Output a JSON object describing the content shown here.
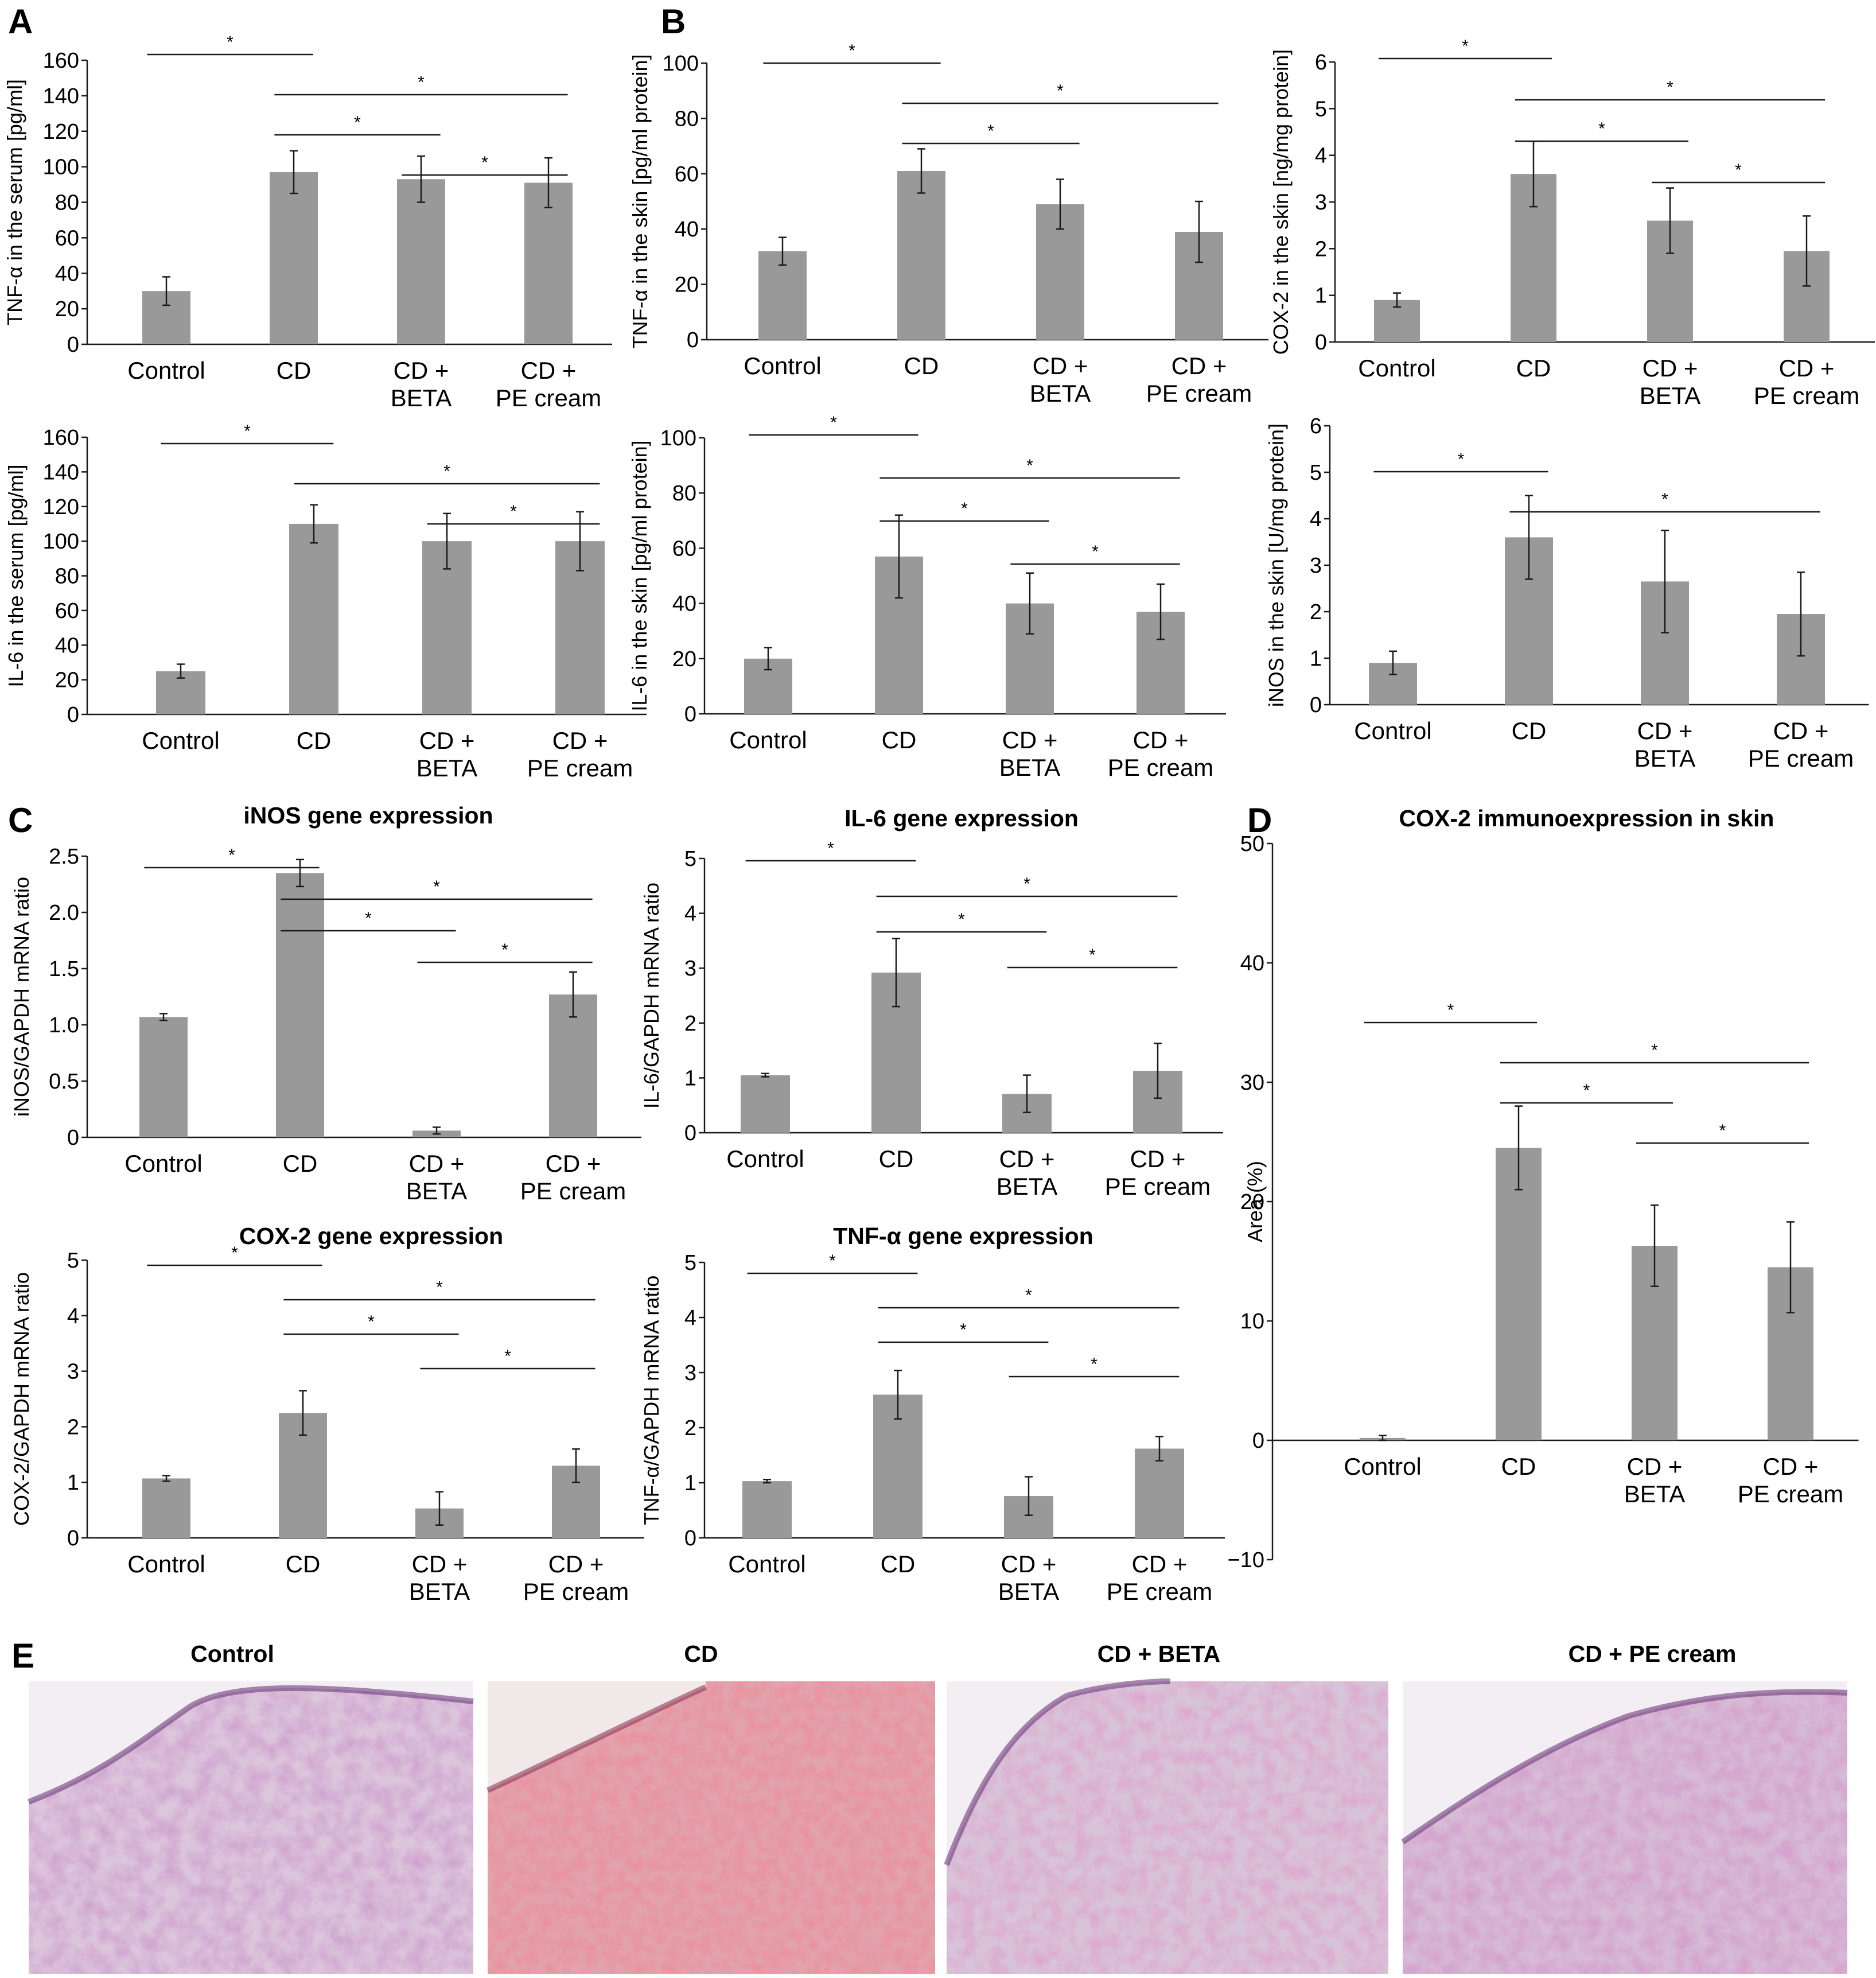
{
  "panel_labels": [
    "A",
    "B",
    "C",
    "D",
    "E"
  ],
  "colors": {
    "bar": "#999999",
    "line": "#1a1a1a",
    "background": "#ffffff"
  },
  "significance_marker": "*",
  "chart_data": [
    {
      "type": "bar",
      "panel": "A",
      "title": "",
      "ylabel": "TNF-α in the serum [pg/ml]",
      "categories": [
        [
          "Control"
        ],
        [
          "CD"
        ],
        [
          "CD +",
          "BETA"
        ],
        [
          "CD +",
          "PE cream"
        ]
      ],
      "values": [
        30,
        97,
        93,
        91
      ],
      "errors": [
        8,
        12,
        13,
        14
      ],
      "ylim": [
        0,
        160
      ],
      "yticks": [
        "0",
        "20",
        "40",
        "60",
        "80",
        "100",
        "120",
        "140",
        "160"
      ],
      "significance": [
        [
          0,
          1
        ],
        [
          1,
          3
        ],
        [
          1,
          2
        ],
        [
          2,
          3
        ]
      ],
      "legend": "none",
      "grid": false
    },
    {
      "type": "bar",
      "panel": "B",
      "title": "",
      "ylabel": "TNF-α in the skin [pg/ml protein]",
      "categories": [
        [
          "Control"
        ],
        [
          "CD"
        ],
        [
          "CD +",
          "BETA"
        ],
        [
          "CD +",
          "PE cream"
        ]
      ],
      "values": [
        32,
        61,
        49,
        39
      ],
      "errors": [
        5,
        8,
        9,
        11
      ],
      "ylim": [
        0,
        100
      ],
      "yticks": [
        "0",
        "20",
        "40",
        "60",
        "80",
        "100"
      ],
      "significance": [
        [
          0,
          1
        ],
        [
          1,
          3
        ],
        [
          1,
          2
        ]
      ],
      "legend": "none",
      "grid": false
    },
    {
      "type": "bar",
      "panel": "",
      "title": "",
      "ylabel": "COX-2 in the skin [ng/mg protein]",
      "categories": [
        [
          "Control"
        ],
        [
          "CD"
        ],
        [
          "CD +",
          "BETA"
        ],
        [
          "CD +",
          "PE cream"
        ]
      ],
      "values": [
        0.9,
        3.6,
        2.6,
        1.95
      ],
      "errors": [
        0.15,
        0.7,
        0.7,
        0.75
      ],
      "ylim": [
        0,
        6
      ],
      "yticks": [
        "0",
        "1",
        "2",
        "3",
        "4",
        "5",
        "6"
      ],
      "significance": [
        [
          0,
          1
        ],
        [
          1,
          3
        ],
        [
          1,
          2
        ],
        [
          2,
          3
        ]
      ],
      "legend": "none",
      "grid": false
    },
    {
      "type": "bar",
      "panel": "",
      "title": "",
      "ylabel": "IL-6 in the serum [pg/ml]",
      "categories": [
        [
          "Control"
        ],
        [
          "CD"
        ],
        [
          "CD +",
          "BETA"
        ],
        [
          "CD +",
          "PE cream"
        ]
      ],
      "values": [
        25,
        110,
        100,
        100
      ],
      "errors": [
        4,
        11,
        16,
        17
      ],
      "ylim": [
        0,
        160
      ],
      "yticks": [
        "0",
        "20",
        "40",
        "60",
        "80",
        "100",
        "120",
        "140",
        "160"
      ],
      "significance": [
        [
          0,
          1
        ],
        [
          1,
          3
        ],
        [
          2,
          3
        ]
      ],
      "legend": "none",
      "grid": false
    },
    {
      "type": "bar",
      "panel": "",
      "title": "",
      "ylabel": "IL-6 in the skin [pg/ml protein]",
      "categories": [
        [
          "Control"
        ],
        [
          "CD"
        ],
        [
          "CD +",
          "BETA"
        ],
        [
          "CD +",
          "PE cream"
        ]
      ],
      "values": [
        20,
        57,
        40,
        37
      ],
      "errors": [
        4,
        15,
        11,
        10
      ],
      "ylim": [
        0,
        100
      ],
      "yticks": [
        "0",
        "20",
        "40",
        "60",
        "80",
        "100"
      ],
      "significance": [
        [
          0,
          1
        ],
        [
          1,
          3
        ],
        [
          1,
          2
        ],
        [
          2,
          3
        ]
      ],
      "legend": "none",
      "grid": false
    },
    {
      "type": "bar",
      "panel": "",
      "title": "",
      "ylabel": "iNOS in the skin [U/mg protein]",
      "categories": [
        [
          "Control"
        ],
        [
          "CD"
        ],
        [
          "CD +",
          "BETA"
        ],
        [
          "CD +",
          "PE cream"
        ]
      ],
      "values": [
        0.9,
        3.6,
        2.65,
        1.95
      ],
      "errors": [
        0.25,
        0.9,
        1.1,
        0.9
      ],
      "ylim": [
        0,
        6
      ],
      "yticks": [
        "0",
        "1",
        "2",
        "3",
        "4",
        "5",
        "6"
      ],
      "significance": [
        [
          0,
          1
        ],
        [
          1,
          3
        ]
      ],
      "legend": "none",
      "grid": false
    },
    {
      "type": "bar",
      "panel": "C",
      "title": "iNOS gene expression",
      "ylabel": "iNOS/GAPDH mRNA ratio",
      "categories": [
        [
          "Control"
        ],
        [
          "CD"
        ],
        [
          "CD +",
          "BETA"
        ],
        [
          "CD +",
          "PE cream"
        ]
      ],
      "values": [
        1.07,
        2.35,
        0.06,
        1.27
      ],
      "errors": [
        0.03,
        0.12,
        0.03,
        0.2
      ],
      "ylim": [
        0,
        2.5
      ],
      "yticks": [
        "0",
        "0.5",
        "1.0",
        "1.5",
        "2.0",
        "2.5"
      ],
      "significance": [
        [
          0,
          1
        ],
        [
          1,
          3
        ],
        [
          1,
          2
        ],
        [
          2,
          3
        ]
      ],
      "legend": "none",
      "grid": false
    },
    {
      "type": "bar",
      "panel": "",
      "title": "IL-6 gene expression",
      "ylabel": "IL-6/GAPDH mRNA ratio",
      "categories": [
        [
          "Control"
        ],
        [
          "CD"
        ],
        [
          "CD +",
          "BETA"
        ],
        [
          "CD +",
          "PE cream"
        ]
      ],
      "values": [
        1.05,
        2.92,
        0.71,
        1.13
      ],
      "errors": [
        0.03,
        0.62,
        0.34,
        0.5
      ],
      "ylim": [
        0,
        5
      ],
      "yticks": [
        "0",
        "1",
        "2",
        "3",
        "4",
        "5"
      ],
      "significance": [
        [
          0,
          1
        ],
        [
          1,
          3
        ],
        [
          1,
          2
        ],
        [
          2,
          3
        ]
      ],
      "legend": "none",
      "grid": false
    },
    {
      "type": "bar",
      "panel": "",
      "title": "COX-2 gene expression",
      "ylabel": "COX-2/GAPDH mRNA ratio",
      "categories": [
        [
          "Control"
        ],
        [
          "CD"
        ],
        [
          "CD +",
          "BETA"
        ],
        [
          "CD +",
          "PE cream"
        ]
      ],
      "values": [
        1.07,
        2.25,
        0.53,
        1.3
      ],
      "errors": [
        0.05,
        0.4,
        0.3,
        0.3
      ],
      "ylim": [
        0,
        5
      ],
      "yticks": [
        "0",
        "1",
        "2",
        "3",
        "4",
        "5"
      ],
      "significance": [
        [
          0,
          1
        ],
        [
          1,
          3
        ],
        [
          1,
          2
        ],
        [
          2,
          3
        ]
      ],
      "legend": "none",
      "grid": false
    },
    {
      "type": "bar",
      "panel": "",
      "title": "TNF-α gene expression",
      "ylabel": "TNF-α/GAPDH mRNA ratio",
      "categories": [
        [
          "Control"
        ],
        [
          "CD"
        ],
        [
          "CD +",
          "BETA"
        ],
        [
          "CD +",
          "PE cream"
        ]
      ],
      "values": [
        1.03,
        2.6,
        0.76,
        1.62
      ],
      "errors": [
        0.03,
        0.44,
        0.35,
        0.22
      ],
      "ylim": [
        0,
        5
      ],
      "yticks": [
        "0",
        "1",
        "2",
        "3",
        "4",
        "5"
      ],
      "significance": [
        [
          0,
          1
        ],
        [
          1,
          3
        ],
        [
          1,
          2
        ],
        [
          2,
          3
        ]
      ],
      "legend": "none",
      "grid": false
    },
    {
      "type": "bar",
      "panel": "D",
      "title": "COX-2 immunoexpression in skin",
      "ylabel": "Area (%)",
      "categories": [
        [
          "Control"
        ],
        [
          "CD"
        ],
        [
          "CD +",
          "BETA"
        ],
        [
          "CD +",
          "PE cream"
        ]
      ],
      "values": [
        0.2,
        24.5,
        16.3,
        14.5
      ],
      "errors": [
        0.2,
        3.5,
        3.4,
        3.8
      ],
      "ylim": [
        -10,
        50
      ],
      "yticks": [
        "−10",
        "0",
        "10",
        "20",
        "30",
        "40",
        "50"
      ],
      "significance": [
        [
          0,
          1
        ],
        [
          1,
          3
        ],
        [
          1,
          2
        ],
        [
          2,
          3
        ]
      ],
      "legend": "none",
      "grid": false
    }
  ],
  "histology": {
    "panel": "E",
    "labels": [
      "Control",
      "CD",
      "CD + BETA",
      "CD + PE cream"
    ]
  }
}
